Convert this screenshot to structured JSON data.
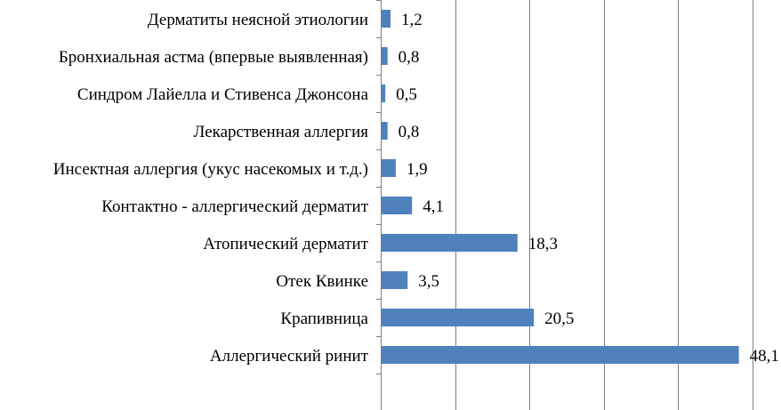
{
  "chart_data": {
    "type": "bar",
    "orientation": "horizontal",
    "categories": [
      "Дерматиты неясной этиологии",
      "Бронхиальная астма (впервые выявленная)",
      "Синдром Лайелла и Стивенса Джонсона",
      "Лекарственная аллергия",
      "Инсектная аллергия (укус насекомых и т.д.)",
      "Контактно - аллергический дерматит",
      "Атопический дерматит",
      "Отек Квинке",
      "Крапивница",
      "Аллергический ринит"
    ],
    "values": [
      1.2,
      0.8,
      0.5,
      0.8,
      1.9,
      4.1,
      18.3,
      3.5,
      20.5,
      48.1
    ],
    "value_labels": [
      "1,2",
      "0,8",
      "0,5",
      "0,8",
      "1,9",
      "4,1",
      "18,3",
      "3,5",
      "20,5",
      "48,1"
    ],
    "xlim": [
      0,
      60
    ],
    "grid": true,
    "bar_color": "#4f81bd",
    "title": "",
    "xlabel": "",
    "ylabel": ""
  }
}
